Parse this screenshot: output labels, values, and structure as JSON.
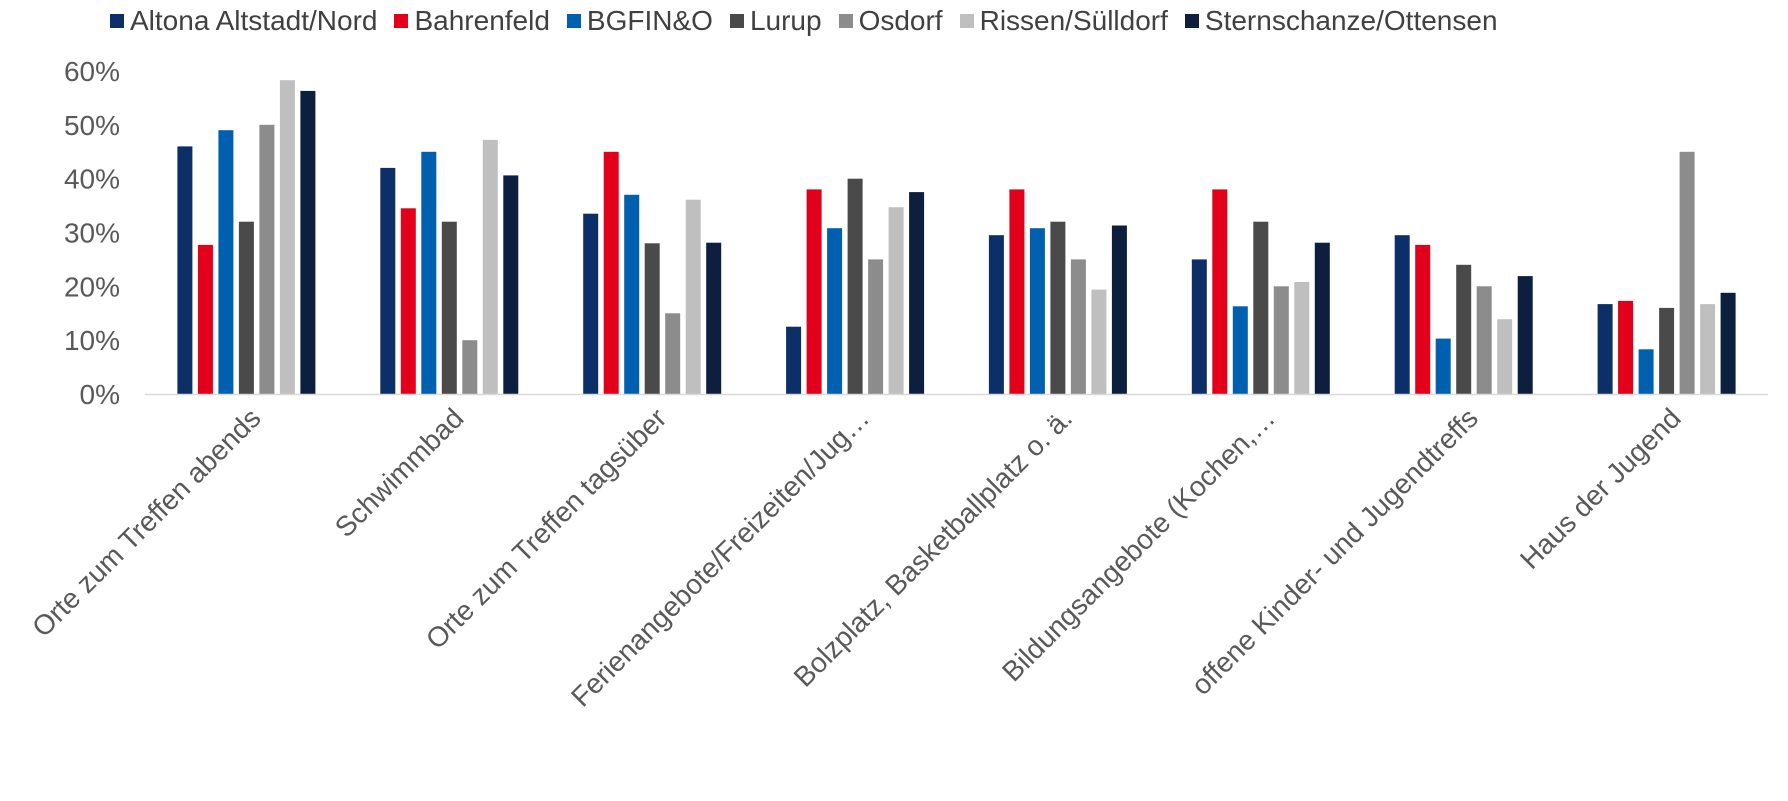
{
  "chart_data": {
    "type": "bar",
    "title": "",
    "xlabel": "",
    "ylabel": "",
    "ylim": [
      0,
      0.6
    ],
    "yticks": [
      0,
      0.1,
      0.2,
      0.3,
      0.4,
      0.5,
      0.6
    ],
    "ytick_labels": [
      "0%",
      "10%",
      "20%",
      "30%",
      "40%",
      "50%",
      "60%"
    ],
    "grid": false,
    "legend_position": "top",
    "categories": [
      "Orte zum Treffen abends",
      "Schwimmbad",
      "Orte zum Treffen tagsüber",
      "Ferienangebote/Freizeiten/Jug…",
      "Bolzplatz, Basketballplatz o. ä.",
      "Bildungsangebote (Kochen,…",
      "offene Kinder- und Jugendtreffs",
      "Haus der Jugend"
    ],
    "series": [
      {
        "name": "Altona Altstadt/Nord",
        "color": "#0b2f66",
        "values": [
          0.46,
          0.42,
          0.335,
          0.125,
          0.295,
          0.25,
          0.295,
          0.167
        ]
      },
      {
        "name": "Bahrenfeld",
        "color": "#e2001a",
        "values": [
          0.277,
          0.345,
          0.45,
          0.38,
          0.38,
          0.38,
          0.277,
          0.173
        ]
      },
      {
        "name": "BGFIN&O",
        "color": "#0060b0",
        "values": [
          0.49,
          0.45,
          0.37,
          0.308,
          0.308,
          0.163,
          0.103,
          0.083
        ]
      },
      {
        "name": "Lurup",
        "color": "#4a4a4a",
        "values": [
          0.32,
          0.32,
          0.28,
          0.4,
          0.32,
          0.32,
          0.24,
          0.16
        ]
      },
      {
        "name": "Osdorf",
        "color": "#8c8c8c",
        "values": [
          0.5,
          0.1,
          0.15,
          0.25,
          0.25,
          0.2,
          0.2,
          0.45
        ]
      },
      {
        "name": "Rissen/Sülldorf",
        "color": "#bfbfbf",
        "values": [
          0.583,
          0.472,
          0.361,
          0.347,
          0.194,
          0.208,
          0.139,
          0.167
        ]
      },
      {
        "name": "Sternschanze/Ottensen",
        "color": "#0c1f3f",
        "values": [
          0.563,
          0.406,
          0.281,
          0.375,
          0.313,
          0.281,
          0.219,
          0.188
        ]
      }
    ]
  }
}
